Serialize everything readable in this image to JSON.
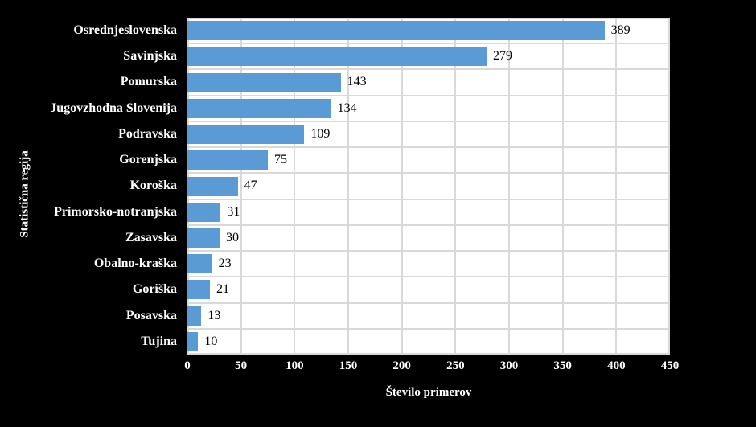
{
  "figure": {
    "background_color": "#000000",
    "panel_background": "#ffffff",
    "grid_color": "#d9d9d9"
  },
  "chart_data": {
    "type": "bar",
    "orientation": "horizontal",
    "title": "",
    "xlabel": "Število primerov",
    "ylabel": "Statistična regija",
    "categories": [
      "Osrednjeslovenska",
      "Savinjska",
      "Pomurska",
      "Jugovzhodna Slovenija",
      "Podravska",
      "Gorenjska",
      "Koroška",
      "Primorsko-notranjska",
      "Zasavska",
      "Obalno-kraška",
      "Goriška",
      "Posavska",
      "Tujina"
    ],
    "values": [
      389,
      279,
      143,
      134,
      109,
      75,
      47,
      31,
      30,
      23,
      21,
      13,
      10
    ],
    "value_labels": [
      "389",
      "279",
      "143",
      "134",
      "109",
      "75",
      "47",
      "31",
      "30",
      "23",
      "21",
      "13",
      "10"
    ],
    "bar_color": "#5b9bd5",
    "xlim": [
      0,
      450
    ],
    "xticks": [
      0,
      50,
      100,
      150,
      200,
      250,
      300,
      350,
      400,
      450
    ],
    "xtick_labels": [
      "0",
      "50",
      "100",
      "150",
      "200",
      "250",
      "300",
      "350",
      "400",
      "450"
    ],
    "grid": true,
    "legend": false
  }
}
